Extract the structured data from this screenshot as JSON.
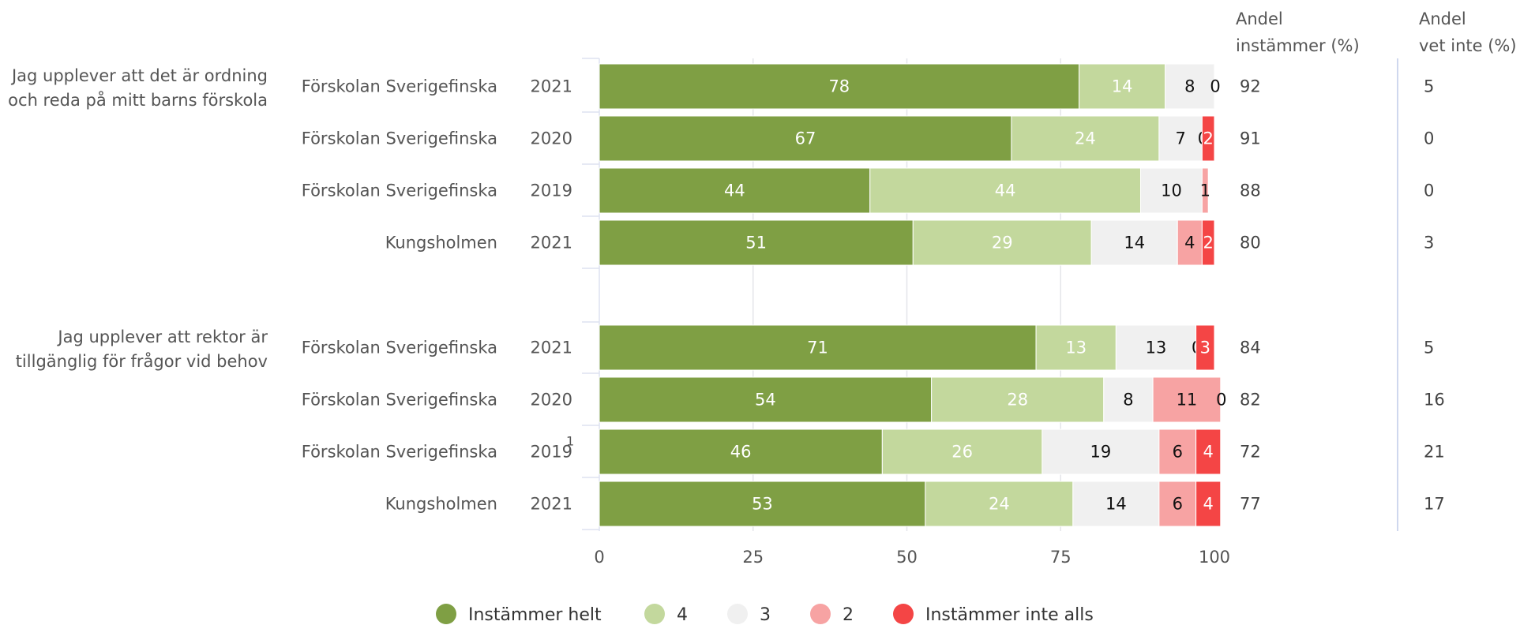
{
  "chart_data": {
    "type": "bar",
    "stacked": true,
    "orientation": "horizontal",
    "xlim": [
      0,
      100
    ],
    "xticks": [
      "0",
      "25",
      "50",
      "75",
      "100"
    ],
    "grid": true,
    "legend_position": "bottom",
    "column_headers": {
      "share_agree": [
        "Andel",
        "instämmer (%)"
      ],
      "share_dont_know": [
        "Andel",
        "vet inte (%)"
      ]
    },
    "legend": [
      {
        "name": "Instämmer helt",
        "color": "#7f9f44"
      },
      {
        "name": "4",
        "color": "#c3d89d"
      },
      {
        "name": "3",
        "color": "#f0f0f0"
      },
      {
        "name": "2",
        "color": "#f7a3a3"
      },
      {
        "name": "Instämmer inte alls",
        "color": "#f44545"
      }
    ],
    "groups": [
      {
        "question": [
          "Jag upplever att det är ordning",
          "och reda på mitt barns förskola"
        ],
        "rows": [
          {
            "unit": "Förskolan Sverigefinska",
            "year": "2021",
            "note": "",
            "values": [
              78,
              14,
              8,
              0,
              0
            ],
            "labels": [
              "78",
              "14",
              "8",
              "0",
              ""
            ],
            "share_agree": "92",
            "share_dont_know": "5"
          },
          {
            "unit": "Förskolan Sverigefinska",
            "year": "2020",
            "note": "",
            "values": [
              67,
              24,
              7,
              0,
              2
            ],
            "labels": [
              "67",
              "24",
              "7",
              "0",
              "2"
            ],
            "share_agree": "91",
            "share_dont_know": "0"
          },
          {
            "unit": "Förskolan Sverigefinska",
            "year": "2019",
            "note": "",
            "values": [
              44,
              44,
              10,
              1,
              0
            ],
            "labels": [
              "44",
              "44",
              "10",
              "1",
              ""
            ],
            "share_agree": "88",
            "share_dont_know": "0"
          },
          {
            "unit": "Kungsholmen",
            "year": "2021",
            "note": "",
            "values": [
              51,
              29,
              14,
              4,
              2
            ],
            "labels": [
              "51",
              "29",
              "14",
              "4",
              "2"
            ],
            "share_agree": "80",
            "share_dont_know": "3"
          }
        ]
      },
      {
        "question": [
          "Jag upplever att rektor är",
          "tillgänglig för frågor vid behov"
        ],
        "rows": [
          {
            "unit": "Förskolan Sverigefinska",
            "year": "2021",
            "note": "",
            "values": [
              71,
              13,
              13,
              0,
              3
            ],
            "labels": [
              "71",
              "13",
              "13",
              "0",
              "3"
            ],
            "share_agree": "84",
            "share_dont_know": "5"
          },
          {
            "unit": "Förskolan Sverigefinska",
            "year": "2020",
            "note": "",
            "values": [
              54,
              28,
              8,
              11,
              0
            ],
            "labels": [
              "54",
              "28",
              "8",
              "11",
              "0"
            ],
            "share_agree": "82",
            "share_dont_know": "16"
          },
          {
            "unit": "Förskolan Sverigefinska",
            "year": "2019",
            "note": "1",
            "values": [
              46,
              26,
              19,
              6,
              4
            ],
            "labels": [
              "46",
              "26",
              "19",
              "6",
              "4"
            ],
            "share_agree": "72",
            "share_dont_know": "21"
          },
          {
            "unit": "Kungsholmen",
            "year": "2021",
            "note": "",
            "values": [
              53,
              24,
              14,
              6,
              4
            ],
            "labels": [
              "53",
              "24",
              "14",
              "6",
              "4"
            ],
            "share_agree": "77",
            "share_dont_know": "17"
          }
        ]
      }
    ]
  }
}
